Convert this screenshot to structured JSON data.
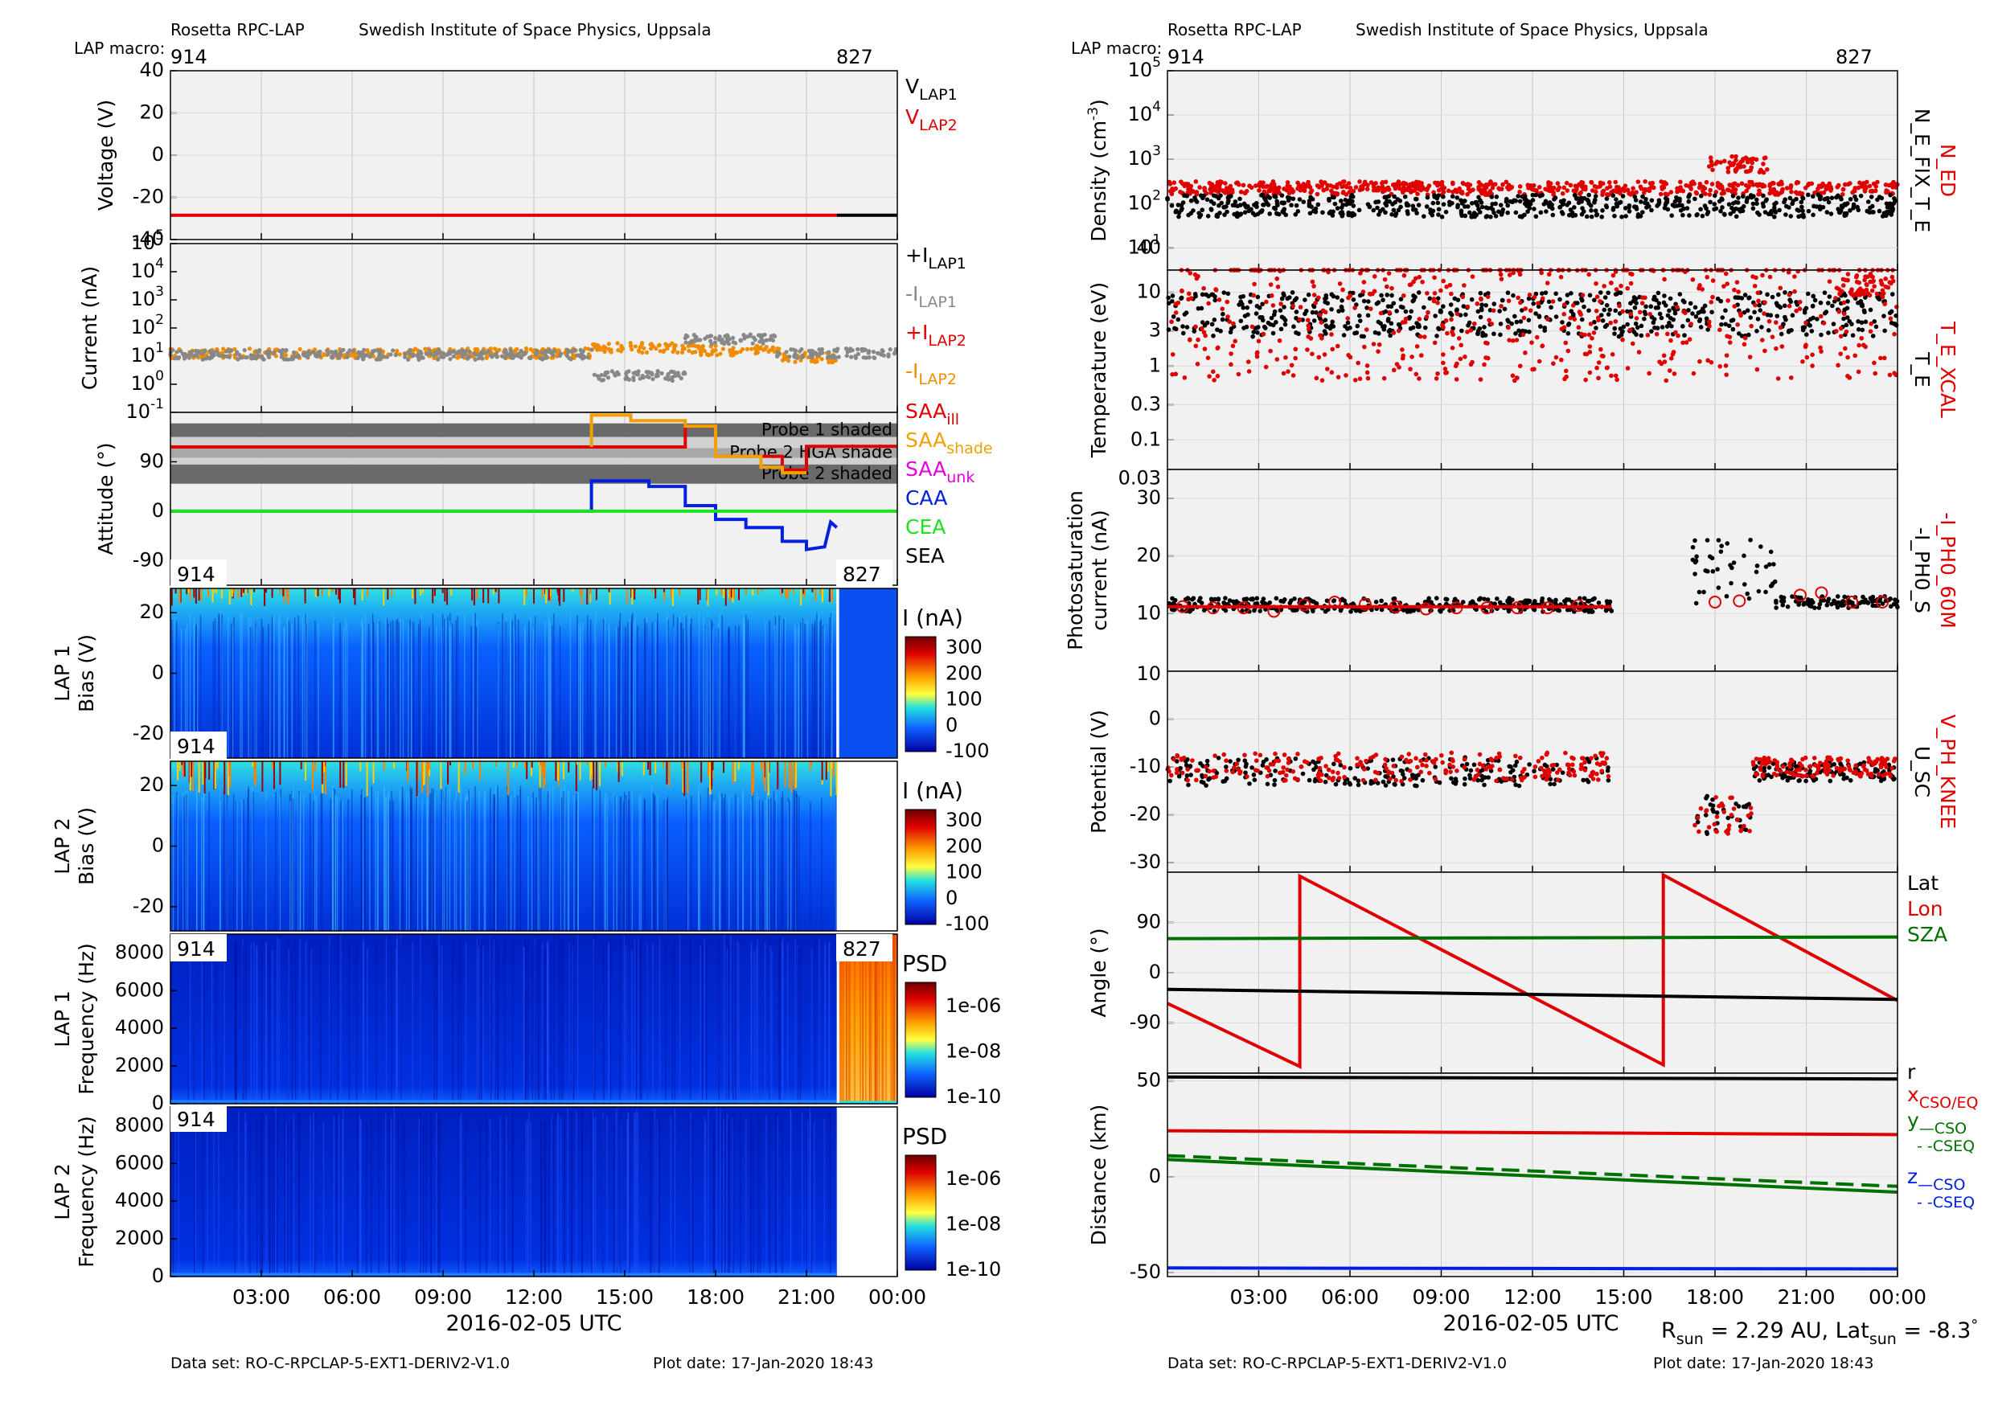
{
  "left": {
    "header": {
      "instrument": "Rosetta RPC-LAP",
      "institute": "Swedish Institute of Space Physics, Uppsala",
      "macro_label": "LAP macro:",
      "macro_start": "914",
      "macro_end": "827"
    },
    "footer": {
      "dataset": "Data set: RO-C-RPCLAP-5-EXT1-DERIV2-V1.0",
      "plot_date": "Plot date: 17-Jan-2020 18:43"
    },
    "xlabel": "2016-02-05 UTC"
  },
  "right": {
    "header": {
      "instrument": "Rosetta RPC-LAP",
      "institute": "Swedish Institute of Space Physics, Uppsala",
      "macro_label": "LAP macro:",
      "macro_start": "914",
      "macro_end": "827"
    },
    "footer": {
      "dataset": "Data set: RO-C-RPCLAP-5-EXT1-DERIV2-V1.0",
      "plot_date": "Plot date: 17-Jan-2020 18:43"
    },
    "xlabel": "2016-02-05 UTC",
    "rsun": "2.29 AU",
    "latsun": "-8.3"
  },
  "time_ticks": [
    "03:00",
    "06:00",
    "09:00",
    "12:00",
    "15:00",
    "18:00",
    "21:00",
    "00:00"
  ],
  "chart_data": [
    {
      "id": "voltage",
      "type": "line",
      "ylabel": "Voltage (V)",
      "ylim": [
        -40,
        40
      ],
      "yticks": [
        "40",
        "20",
        "0",
        "-20",
        "-40"
      ],
      "legend": [
        {
          "text": "V",
          "sub": "LAP1",
          "color": "#000000"
        },
        {
          "text": "V",
          "sub": "LAP2",
          "color": "#e00000"
        }
      ],
      "series": [
        {
          "color": "#e00000",
          "x": [
            0,
            22
          ],
          "y": [
            -28.5,
            -28.5
          ]
        },
        {
          "color": "#000000",
          "x": [
            22,
            24
          ],
          "y": [
            -28.5,
            -28.5
          ]
        }
      ]
    },
    {
      "id": "current",
      "type": "scatter",
      "ylabel": "Current (nA)",
      "scale": "log",
      "ylim": [
        -1,
        5
      ],
      "yticks": [
        {
          "b": "10",
          "e": "5"
        },
        {
          "b": "10",
          "e": "4"
        },
        {
          "b": "10",
          "e": "3"
        },
        {
          "b": "10",
          "e": "2"
        },
        {
          "b": "10",
          "e": "1"
        },
        {
          "b": "10",
          "e": "0"
        },
        {
          "b": "10",
          "e": "-1"
        }
      ],
      "legend": [
        {
          "text": "+I",
          "sub": "LAP1",
          "color": "#000000"
        },
        {
          "text": "-I",
          "sub": "LAP1",
          "color": "#888888"
        },
        {
          "text": "+I",
          "sub": "LAP2",
          "color": "#e00000"
        },
        {
          "text": "-I",
          "sub": "LAP2",
          "color": "#f08c00"
        }
      ],
      "bands": [
        {
          "x": [
            0,
            13.9
          ],
          "y": 1.1,
          "color": "#f08c00"
        },
        {
          "x": [
            13.9,
            17.5
          ],
          "y": 1.3,
          "color": "#f08c00"
        },
        {
          "x": [
            17.5,
            20.2
          ],
          "y": 1.2,
          "color": "#f08c00"
        },
        {
          "x": [
            20.2,
            22
          ],
          "y": 0.95,
          "color": "#f08c00"
        },
        {
          "x": [
            0,
            13.9
          ],
          "y": 1.05,
          "color": "#888888"
        },
        {
          "x": [
            13.9,
            17
          ],
          "y": 0.3,
          "color": "#888888"
        },
        {
          "x": [
            17,
            20
          ],
          "y": 1.6,
          "color": "#888888"
        },
        {
          "x": [
            20,
            24
          ],
          "y": 1.1,
          "color": "#888888"
        }
      ]
    },
    {
      "id": "attitude",
      "type": "line",
      "ylabel": "Attitude (°)",
      "ylim": [
        -135,
        180
      ],
      "yticks": [
        "90",
        "0",
        "-90"
      ],
      "shade_labels": [
        "Probe 1 shaded",
        "Probe 2 HGA shade",
        "Probe 2 shaded"
      ],
      "legend": [
        {
          "text": "SAA",
          "sub": "ill",
          "color": "#e00000"
        },
        {
          "text": "SAA",
          "sub": "shade",
          "color": "#f0a000"
        },
        {
          "text": "SAA",
          "sub": "unk",
          "color": "#e000e0"
        },
        {
          "text": "CAA",
          "sub": "",
          "color": "#0020e0"
        },
        {
          "text": "CEA",
          "sub": "",
          "color": "#20e020"
        },
        {
          "text": "SEA",
          "sub": "",
          "color": "#000000"
        }
      ],
      "series": [
        {
          "name": "SAA",
          "color": "#e00000",
          "x": [
            0,
            13.9,
            13.9,
            17,
            17,
            18,
            18,
            19.5,
            19.5,
            20.2,
            20.2,
            21,
            21,
            24
          ],
          "y": [
            117,
            117,
            117,
            117,
            155,
            155,
            100,
            100,
            100,
            100,
            75,
            75,
            118,
            118
          ]
        },
        {
          "name": "SAA_shade",
          "color": "#f0a000",
          "x": [
            13.9,
            13.9,
            15.2,
            15.2,
            17,
            17,
            18,
            18,
            19.5,
            19.5,
            20.2,
            20.2,
            21
          ],
          "y": [
            117,
            175,
            175,
            165,
            165,
            155,
            155,
            100,
            100,
            80,
            80,
            70,
            70
          ]
        },
        {
          "name": "CAA",
          "color": "#0020e0",
          "x": [
            0,
            13.9,
            13.9,
            15.8,
            15.8,
            17,
            17,
            18,
            18,
            19,
            19,
            20.2,
            20.2,
            21,
            21,
            21.6,
            21.8,
            22
          ],
          "y": [
            0,
            0,
            55,
            55,
            45,
            45,
            10,
            10,
            -15,
            -15,
            -30,
            -30,
            -55,
            -55,
            -70,
            -65,
            -20,
            -30
          ]
        },
        {
          "name": "CEA",
          "color": "#20e020",
          "x": [
            0,
            24
          ],
          "y": [
            0,
            0
          ]
        }
      ]
    },
    {
      "id": "lap1_bias",
      "type": "heatmap",
      "ylabel": "LAP 1",
      "ylabel2": "Bias (V)",
      "ylim": [
        -28,
        28
      ],
      "yticks": [
        "20",
        "0",
        "-20"
      ],
      "cbar": {
        "label": "I (nA)",
        "ticks": [
          "300",
          "200",
          "100",
          "0",
          "-100"
        ]
      },
      "macro_labels": [
        "914",
        "827"
      ]
    },
    {
      "id": "lap2_bias",
      "type": "heatmap",
      "ylabel": "LAP 2",
      "ylabel2": "Bias (V)",
      "ylim": [
        -28,
        28
      ],
      "yticks": [
        "20",
        "0",
        "-20"
      ],
      "cbar": {
        "label": "I (nA)",
        "ticks": [
          "300",
          "200",
          "100",
          "0",
          "-100"
        ]
      },
      "macro_labels": [
        "914"
      ]
    },
    {
      "id": "lap1_freq",
      "type": "heatmap",
      "ylabel": "LAP 1",
      "ylabel2": "Frequency (Hz)",
      "ylim": [
        0,
        9000
      ],
      "yticks": [
        "8000",
        "6000",
        "4000",
        "2000",
        "0"
      ],
      "cbar": {
        "label": "PSD",
        "ticks": [
          "1e-06",
          "1e-08",
          "1e-10"
        ]
      },
      "macro_labels": [
        "914",
        "827"
      ]
    },
    {
      "id": "lap2_freq",
      "type": "heatmap",
      "ylabel": "LAP 2",
      "ylabel2": "Frequency (Hz)",
      "ylim": [
        0,
        9000
      ],
      "yticks": [
        "8000",
        "6000",
        "4000",
        "2000",
        "0"
      ],
      "cbar": {
        "label": "PSD",
        "ticks": [
          "1e-06",
          "1e-08",
          "1e-10"
        ]
      },
      "macro_labels": [
        "914"
      ]
    },
    {
      "id": "density",
      "type": "scatter",
      "ylabel": "Density (cm",
      "ylabel_sup": "-3",
      "ylabel_end": ")",
      "scale": "log",
      "ylim": [
        0.5,
        5
      ],
      "yticks": [
        {
          "b": "10",
          "e": "5"
        },
        {
          "b": "10",
          "e": "4"
        },
        {
          "b": "10",
          "e": "3"
        },
        {
          "b": "10",
          "e": "2"
        },
        {
          "b": "10",
          "e": "1"
        }
      ],
      "legend_rot": [
        {
          "text": "N_ED",
          "color": "#e00000"
        },
        {
          "text": "N_E_FIX_T_E",
          "color": "#000000"
        }
      ],
      "groups": [
        {
          "color": "#e00000",
          "x": [
            0,
            24
          ],
          "y": 2.35,
          "spread": 0.15
        },
        {
          "color": "#e00000",
          "x": [
            17.8,
            19.8
          ],
          "y": 2.9,
          "spread": 0.2
        },
        {
          "color": "#000000",
          "x": [
            0,
            24
          ],
          "y": 1.95,
          "spread": 0.25
        }
      ]
    },
    {
      "id": "temperature",
      "type": "scatter",
      "ylabel": "Temperature (eV)",
      "scale": "log",
      "ylim": [
        -1.4,
        1.3
      ],
      "yticks": [
        "40",
        "10",
        "3",
        "1",
        "0.3",
        "0.1",
        "0.03"
      ],
      "legend_rot": [
        {
          "text": "T_E_XCAL",
          "color": "#e00000"
        },
        {
          "text": "T_E",
          "color": "#000000"
        }
      ],
      "groups": [
        {
          "color": "#000000",
          "x": [
            0,
            24
          ],
          "y": 0.7,
          "spread": 0.3
        },
        {
          "color": "#e00000",
          "x": [
            0,
            24
          ],
          "y": 0.7,
          "spread": 0.9
        },
        {
          "color": "#e00000",
          "x": [
            22,
            24
          ],
          "y": 1.1,
          "spread": 0.15
        }
      ]
    },
    {
      "id": "photosat",
      "type": "scatter",
      "ylabel": "Photosaturation",
      "ylabel2": "current (nA)",
      "ylim": [
        0,
        35
      ],
      "yticks": [
        "30",
        "20",
        "10"
      ],
      "legend_rot": [
        {
          "text": "-I_PH0_60M",
          "color": "#e00000"
        },
        {
          "text": "-I_PH0_S",
          "color": "#000000"
        }
      ],
      "groups": [
        {
          "color": "#000000",
          "x": [
            0,
            14.6
          ],
          "y": 11.5,
          "spread": 1.2
        },
        {
          "color": "#000000",
          "x": [
            17.2,
            20
          ],
          "y": 17,
          "spread": 6
        },
        {
          "color": "#000000",
          "x": [
            20,
            24
          ],
          "y": 12,
          "spread": 1
        }
      ]
    },
    {
      "id": "potential",
      "type": "scatter",
      "ylabel": "Potential (V)",
      "ylim": [
        -32,
        10
      ],
      "yticks": [
        "0",
        "-10",
        "-20",
        "-30"
      ],
      "legend_rot": [
        {
          "text": "V_PH_KNEE",
          "color": "#e00000"
        },
        {
          "text": "U_SC",
          "color": "#000000"
        }
      ],
      "groups": [
        {
          "color": "#000000",
          "x": [
            0,
            14.6
          ],
          "y": -11,
          "spread": 3
        },
        {
          "color": "#e00000",
          "x": [
            0,
            14.6
          ],
          "y": -10,
          "spread": 3
        },
        {
          "color": "#000000",
          "x": [
            17.2,
            19.2
          ],
          "y": -20,
          "spread": 4
        },
        {
          "color": "#e00000",
          "x": [
            17.2,
            19.2
          ],
          "y": -20,
          "spread": 4
        },
        {
          "color": "#000000",
          "x": [
            19.2,
            24
          ],
          "y": -11,
          "spread": 2
        },
        {
          "color": "#e00000",
          "x": [
            19.2,
            24
          ],
          "y": -10,
          "spread": 2
        }
      ]
    },
    {
      "id": "angle",
      "type": "line",
      "ylabel": "Angle (°)",
      "ylim": [
        -180,
        180
      ],
      "yticks": [
        "90",
        "0",
        "-90"
      ],
      "legend": [
        {
          "text": "Lat",
          "sub": "",
          "color": "#000000"
        },
        {
          "text": "Lon",
          "sub": "",
          "color": "#e00000"
        },
        {
          "text": "SZA",
          "sub": "",
          "color": "#007000"
        }
      ],
      "series": [
        {
          "name": "Lon",
          "color": "#e00000",
          "x": [
            0,
            4.35,
            4.35,
            16.3,
            16.3,
            24
          ],
          "y": [
            -55,
            -168,
            173,
            -165,
            175,
            -50
          ]
        },
        {
          "name": "Lat",
          "color": "#000000",
          "x": [
            0,
            24
          ],
          "y": [
            -30,
            -48
          ]
        },
        {
          "name": "SZA",
          "color": "#007000",
          "x": [
            0,
            24
          ],
          "y": [
            61,
            64
          ]
        }
      ]
    },
    {
      "id": "distance",
      "type": "line",
      "ylabel": "Distance (km)",
      "ylim": [
        -52,
        54
      ],
      "yticks": [
        "50",
        "0",
        "-50"
      ],
      "legend": [
        {
          "text": "r",
          "sub": "",
          "color": "#000000"
        },
        {
          "text": "x",
          "sub": "CSO/EQ",
          "color": "#e00000"
        },
        {
          "text": "y",
          "sub": "—CSO",
          "color": "#007000"
        },
        {
          "text": "- -CSEQ",
          "sub": "",
          "color": "#007000"
        },
        {
          "text": "z",
          "sub": "—CSO",
          "color": "#0020e0"
        },
        {
          "text": "- -CSEQ",
          "sub": "",
          "color": "#0020e0"
        }
      ],
      "series": [
        {
          "name": "r",
          "color": "#000000",
          "x": [
            0,
            24
          ],
          "y": [
            52,
            51
          ]
        },
        {
          "name": "x",
          "color": "#e00000",
          "x": [
            0,
            24
          ],
          "y": [
            24,
            22
          ]
        },
        {
          "name": "y_cso",
          "color": "#007000",
          "x": [
            0,
            24
          ],
          "y": [
            9,
            -8
          ]
        },
        {
          "name": "y_cseq",
          "color": "#007000",
          "dash": true,
          "x": [
            0,
            24
          ],
          "y": [
            11,
            -5
          ]
        },
        {
          "name": "z",
          "color": "#0020e0",
          "x": [
            0,
            24
          ],
          "y": [
            -47.5,
            -48
          ]
        }
      ]
    }
  ]
}
